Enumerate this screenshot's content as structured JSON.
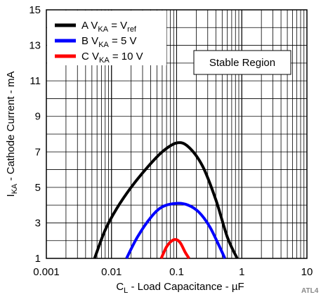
{
  "chart_data": {
    "type": "line",
    "title": "",
    "xlabel": {
      "main": "C",
      "sub": "L",
      "rest": " - Load Capacitance - µF"
    },
    "ylabel": {
      "main": "I",
      "sub": "KA",
      "rest": " - Cathode Current - mA"
    },
    "x_scale": "log",
    "xlim": [
      0.001,
      10
    ],
    "ylim": [
      1,
      15
    ],
    "x_ticks": [
      0.001,
      0.01,
      0.1,
      1,
      10
    ],
    "x_tick_labels": [
      "0.001",
      "0.01",
      "0.1",
      "1",
      "10"
    ],
    "y_ticks": [
      1,
      3,
      5,
      7,
      9,
      11,
      13,
      15
    ],
    "y_tick_labels": [
      "1",
      "3",
      "5",
      "7",
      "9",
      "11",
      "13",
      "15"
    ],
    "grid": true,
    "legend_position": "top-left",
    "series": [
      {
        "legend": {
          "pre": "A V",
          "sub": "KA",
          "mid": " = V",
          "sub2": "ref",
          "post": ""
        },
        "color": "#000000",
        "x": [
          0.0055,
          0.008,
          0.012,
          0.02,
          0.035,
          0.06,
          0.1,
          0.15,
          0.25,
          0.4,
          0.6,
          0.85
        ],
        "y": [
          1.0,
          2.6,
          3.8,
          5.0,
          6.1,
          7.0,
          7.5,
          7.3,
          6.2,
          4.3,
          2.2,
          1.0
        ]
      },
      {
        "legend": {
          "pre": "B V",
          "sub": "KA",
          "mid": " = 5 V",
          "sub2": "",
          "post": ""
        },
        "color": "#0000ff",
        "x": [
          0.017,
          0.025,
          0.04,
          0.06,
          0.1,
          0.15,
          0.22,
          0.32,
          0.45,
          0.55
        ],
        "y": [
          1.0,
          2.2,
          3.3,
          3.9,
          4.1,
          4.0,
          3.6,
          2.8,
          1.7,
          1.0
        ]
      },
      {
        "legend": {
          "pre": "C V",
          "sub": "KA",
          "mid": " = 10 V",
          "sub2": "",
          "post": ""
        },
        "color": "#ff0000",
        "x": [
          0.058,
          0.07,
          0.085,
          0.1,
          0.115,
          0.135,
          0.155
        ],
        "y": [
          1.0,
          1.65,
          2.0,
          2.05,
          1.85,
          1.35,
          1.0
        ]
      }
    ],
    "annotation": "Stable Region",
    "figure_code": "ATL4"
  }
}
